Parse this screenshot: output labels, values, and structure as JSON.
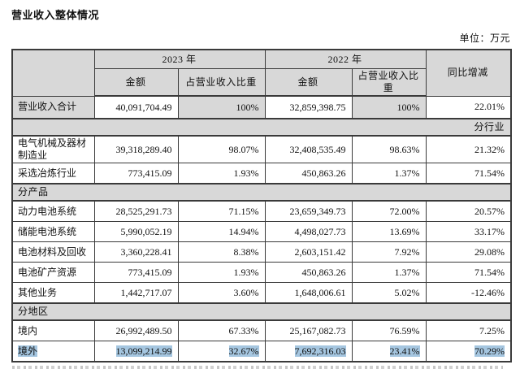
{
  "page": {
    "title": "营业收入整体情况",
    "unit_label": "单位：万元"
  },
  "colors": {
    "header_bg": "#d8d8d8",
    "selection_bg": "#a5c6e0",
    "border": "#3a3a3a"
  },
  "table": {
    "columns": {
      "year2023": "2023 年",
      "year2022": "2022 年",
      "amount": "金额",
      "proportion": "占营业收入比重",
      "yoy": "同比增减"
    },
    "rows": [
      {
        "type": "total",
        "label": "营业收入合计",
        "a23": "40,091,704.49",
        "p23": "100%",
        "a22": "32,859,398.75",
        "p22": "100%",
        "yoy": "22.01%"
      },
      {
        "type": "section-right",
        "label": "分行业"
      },
      {
        "type": "data",
        "label": "电气机械及器材制造业",
        "a23": "39,318,289.40",
        "p23": "98.07%",
        "a22": "32,408,535.49",
        "p22": "98.63%",
        "yoy": "21.32%"
      },
      {
        "type": "data",
        "label": "采选冶炼行业",
        "a23": "773,415.09",
        "p23": "1.93%",
        "a22": "450,863.26",
        "p22": "1.37%",
        "yoy": "71.54%"
      },
      {
        "type": "section-left",
        "label": "分产品"
      },
      {
        "type": "data",
        "label": "动力电池系统",
        "a23": "28,525,291.73",
        "p23": "71.15%",
        "a22": "23,659,349.73",
        "p22": "72.00%",
        "yoy": "20.57%"
      },
      {
        "type": "data",
        "label": "储能电池系统",
        "a23": "5,990,052.19",
        "p23": "14.94%",
        "a22": "4,498,027.73",
        "p22": "13.69%",
        "yoy": "33.17%"
      },
      {
        "type": "data",
        "label": "电池材料及回收",
        "a23": "3,360,228.41",
        "p23": "8.38%",
        "a22": "2,603,151.42",
        "p22": "7.92%",
        "yoy": "29.08%"
      },
      {
        "type": "data",
        "label": "电池矿产资源",
        "a23": "773,415.09",
        "p23": "1.93%",
        "a22": "450,863.26",
        "p22": "1.37%",
        "yoy": "71.54%"
      },
      {
        "type": "data",
        "label": "其他业务",
        "a23": "1,442,717.07",
        "p23": "3.60%",
        "a22": "1,648,006.61",
        "p22": "5.02%",
        "yoy": "-12.46%"
      },
      {
        "type": "section-left",
        "label": "分地区"
      },
      {
        "type": "data",
        "label": "境内",
        "a23": "26,992,489.50",
        "p23": "67.33%",
        "a22": "25,167,082.73",
        "p22": "76.59%",
        "yoy": "7.25%"
      },
      {
        "type": "data",
        "label": "境外",
        "selected": true,
        "a23": "13,099,214.99",
        "p23": "32.67%",
        "a22": "7,692,316.03",
        "p22": "23.41%",
        "yoy": "70.29%"
      }
    ]
  }
}
